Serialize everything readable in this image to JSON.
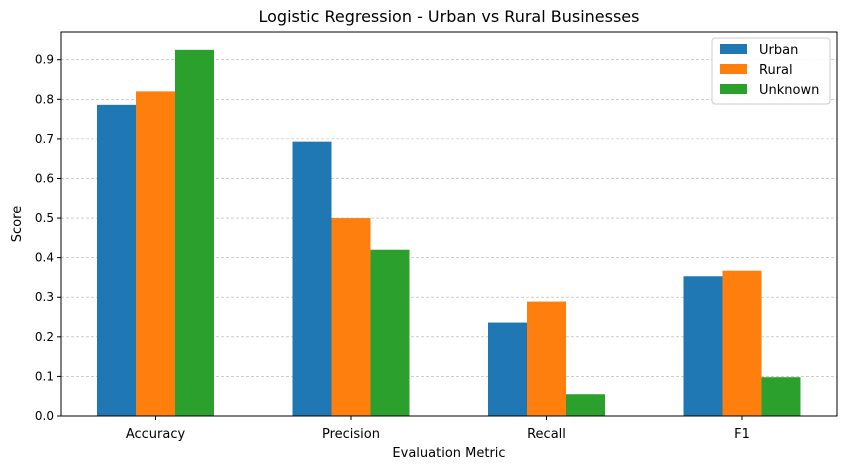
{
  "chart_data": {
    "type": "bar",
    "title": "Logistic Regression - Urban vs Rural Businesses",
    "xlabel": "Evaluation Metric",
    "ylabel": "Score",
    "categories": [
      "Accuracy",
      "Precision",
      "Recall",
      "F1"
    ],
    "series": [
      {
        "name": "Urban",
        "color": "#1f77b4",
        "values": [
          0.786,
          0.693,
          0.236,
          0.353
        ]
      },
      {
        "name": "Rural",
        "color": "#ff7f0e",
        "values": [
          0.82,
          0.5,
          0.289,
          0.367
        ]
      },
      {
        "name": "Unknown",
        "color": "#2ca02c",
        "values": [
          0.925,
          0.42,
          0.055,
          0.098
        ]
      }
    ],
    "ylim": [
      0,
      0.97
    ],
    "yticks": [
      0.0,
      0.1,
      0.2,
      0.3,
      0.4,
      0.5,
      0.6,
      0.7,
      0.8,
      0.9
    ],
    "ytick_labels": [
      "0.0",
      "0.1",
      "0.2",
      "0.3",
      "0.4",
      "0.5",
      "0.6",
      "0.7",
      "0.8",
      "0.9"
    ],
    "grid": "y-dashed",
    "legend_position": "top-right"
  }
}
